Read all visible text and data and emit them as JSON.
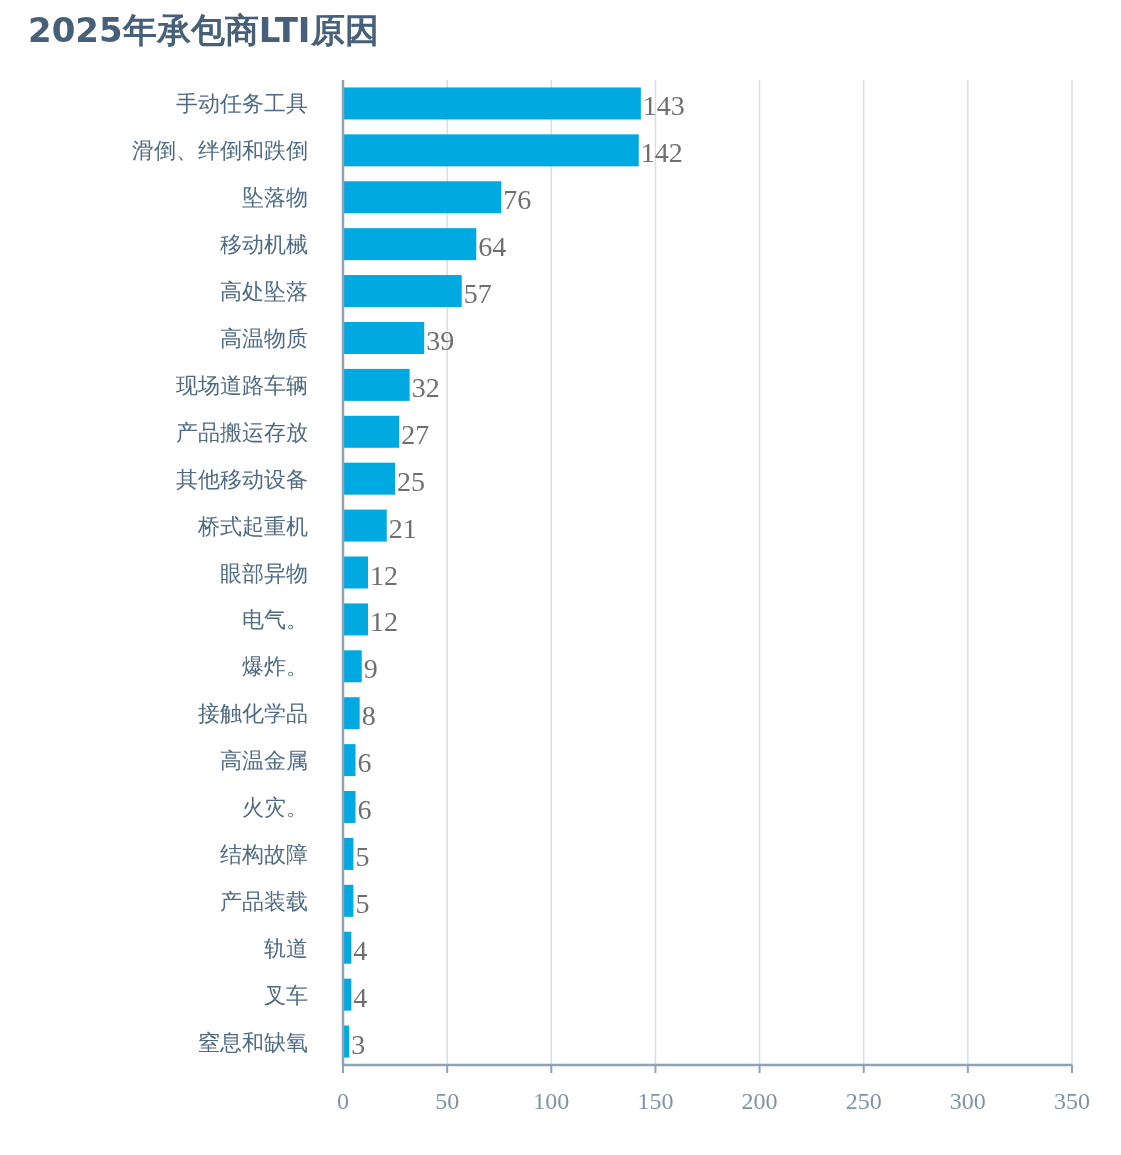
{
  "chart_data": {
    "type": "bar",
    "orientation": "horizontal",
    "title": "2025年承包商LTI原因",
    "categories": [
      "手动任务工具",
      "滑倒、绊倒和跌倒",
      "坠落物",
      "移动机械",
      "高处坠落",
      "高温物质",
      "现场道路车辆",
      "产品搬运存放",
      "其他移动设备",
      "桥式起重机",
      "眼部异物",
      "电气。",
      "爆炸。",
      "接触化学品",
      "高温金属",
      "火灾。",
      "结构故障",
      "产品装载",
      "轨道",
      "叉车",
      "窒息和缺氧"
    ],
    "values": [
      143,
      142,
      76,
      64,
      57,
      39,
      32,
      27,
      25,
      21,
      12,
      12,
      9,
      8,
      6,
      6,
      5,
      5,
      4,
      4,
      3
    ],
    "color": "#00a9e0",
    "xlim": [
      0,
      350
    ],
    "xticks": [
      0,
      50,
      100,
      150,
      200,
      250,
      300,
      350
    ],
    "grid": "x",
    "data_labels": true
  }
}
